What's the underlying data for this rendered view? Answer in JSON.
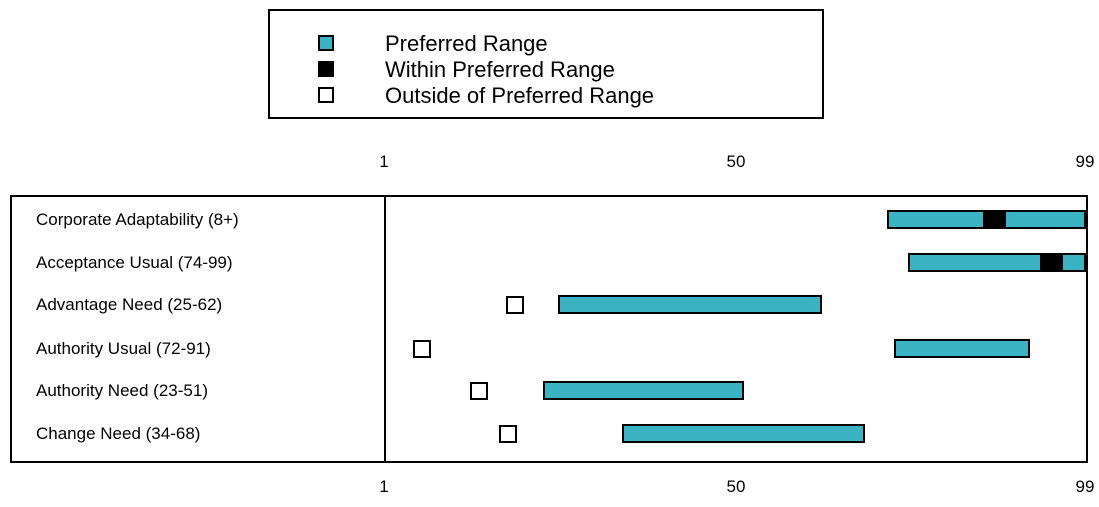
{
  "colors": {
    "preferred": "#3bb3c3",
    "within": "#000000",
    "outside": "#ffffff"
  },
  "legend": {
    "items": [
      {
        "label": "Preferred Range",
        "swatch": "preferred"
      },
      {
        "label": "Within Preferred Range",
        "swatch": "within"
      },
      {
        "label": "Outside of Preferred Range",
        "swatch": "outside"
      }
    ]
  },
  "axis": {
    "ticks": [
      "1",
      "50",
      "99"
    ]
  },
  "chart_data": {
    "type": "bar",
    "xlim": [
      1,
      99
    ],
    "x_ticks": [
      1,
      50,
      99
    ],
    "rows": [
      {
        "label": "Corporate Adaptability (8+)",
        "range": [
          71,
          99
        ],
        "score": 86,
        "within": true
      },
      {
        "label": "Acceptance Usual (74-99)",
        "range": [
          74,
          99
        ],
        "score": 94,
        "within": true
      },
      {
        "label": "Advantage Need (25-62)",
        "range": [
          25,
          62
        ],
        "score": 19,
        "within": false
      },
      {
        "label": "Authority Usual (72-91)",
        "range": [
          72,
          91
        ],
        "score": 6,
        "within": false
      },
      {
        "label": "Authority Need (23-51)",
        "range": [
          23,
          51
        ],
        "score": 14,
        "within": false
      },
      {
        "label": "Change Need (34-68)",
        "range": [
          34,
          68
        ],
        "score": 18,
        "within": false
      }
    ]
  }
}
